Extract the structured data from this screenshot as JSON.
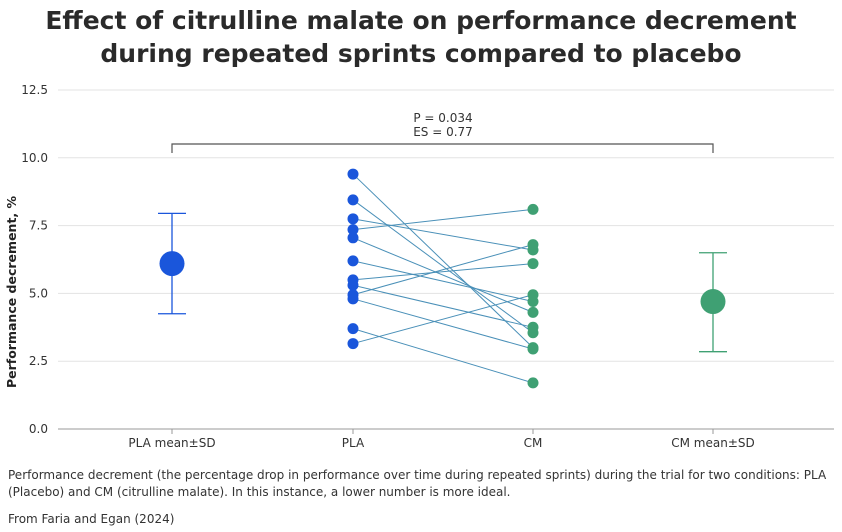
{
  "chart_data": {
    "type": "scatter",
    "title": "Effect of citrulline malate on performance decrement during repeated sprints compared to placebo",
    "xlabel": "",
    "ylabel": "Performance decrement, %",
    "ylim": [
      0,
      12.5
    ],
    "yticks": [
      "0.0",
      "2.5",
      "5.0",
      "7.5",
      "10.0",
      "12.5"
    ],
    "categories": [
      "PLA mean±SD",
      "PLA",
      "CM",
      "CM mean±SD"
    ],
    "grid": true,
    "colors": {
      "PLA": "#1a56db",
      "CM": "#3fa073",
      "pair_line": "#4a90b8",
      "bracket": "#555555"
    },
    "summary": [
      {
        "category": "PLA mean±SD",
        "mean": 6.1,
        "sd_low": 4.25,
        "sd_high": 7.95
      },
      {
        "category": "CM mean±SD",
        "mean": 4.7,
        "sd_low": 2.85,
        "sd_high": 6.5
      }
    ],
    "pairs": [
      {
        "PLA": 9.4,
        "CM": 3.0
      },
      {
        "PLA": 8.45,
        "CM": 3.55
      },
      {
        "PLA": 7.75,
        "CM": 6.6
      },
      {
        "PLA": 7.35,
        "CM": 8.1
      },
      {
        "PLA": 7.05,
        "CM": 4.3
      },
      {
        "PLA": 6.2,
        "CM": 4.7
      },
      {
        "PLA": 5.5,
        "CM": 6.1
      },
      {
        "PLA": 5.3,
        "CM": 3.75
      },
      {
        "PLA": 4.95,
        "CM": 6.8
      },
      {
        "PLA": 4.8,
        "CM": 2.95
      },
      {
        "PLA": 3.7,
        "CM": 1.7
      },
      {
        "PLA": 3.15,
        "CM": 4.95
      }
    ],
    "annotation": {
      "p_label": "P = 0.034",
      "es_label": "ES = 0.77"
    }
  },
  "caption": "Performance decrement (the percentage drop in performance over time during repeated sprints) during the trial for two conditions: PLA (Placebo) and CM (citrulline malate). In this instance, a lower number is more ideal.",
  "source": "From Faria and Egan (2024)"
}
